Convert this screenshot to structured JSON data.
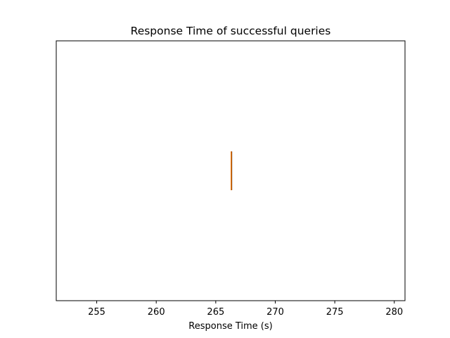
{
  "chart_data": {
    "type": "boxplot",
    "orientation": "horizontal",
    "title": "Response Time of successful queries",
    "xlabel": "Response Time (s)",
    "ylabel": "",
    "xlim": [
      251.6,
      280.9
    ],
    "xticks": [
      255,
      260,
      265,
      270,
      275,
      280
    ],
    "xtick_labels": [
      "255",
      "260",
      "265",
      "270",
      "275",
      "280"
    ],
    "yticks_visible": false,
    "grid": false,
    "series": [
      {
        "values": [
          266.3
        ],
        "min": 266.3,
        "q1": 266.3,
        "median": 266.3,
        "q3": 266.3,
        "max": 266.3
      }
    ],
    "colors": {
      "box": "#000000",
      "median": "#ff7f0e",
      "axes": "#000000"
    }
  }
}
